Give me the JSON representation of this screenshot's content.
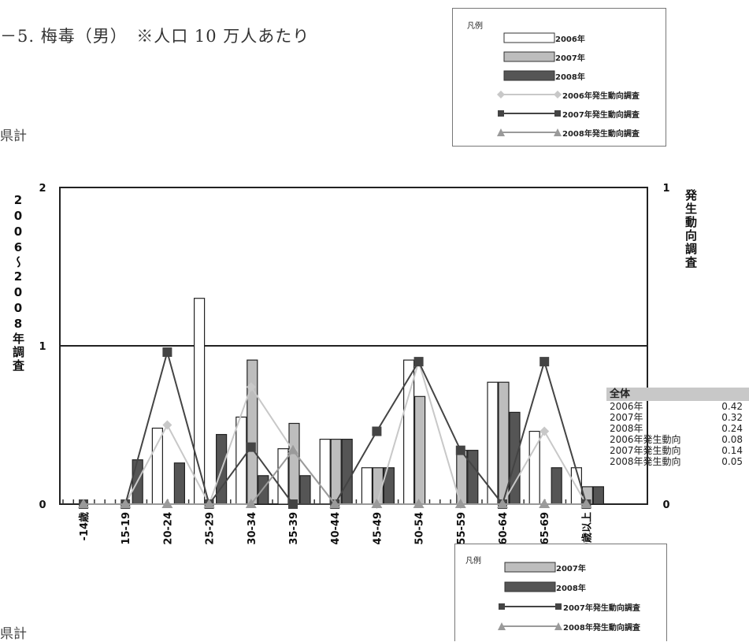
{
  "page": {
    "title": "－5. 梅毒（男）　※人口 10 万人あたり",
    "fragment_top": "県計",
    "fragment_bottom": "県計"
  },
  "legend_top": {
    "title": "凡例",
    "items": [
      {
        "label": "2006年",
        "kind": "bar",
        "color": "#ffffff"
      },
      {
        "label": "2007年",
        "kind": "bar",
        "color": "#bdbdbd"
      },
      {
        "label": "2008年",
        "kind": "bar",
        "color": "#555555"
      },
      {
        "label": "2006年発生動向調査",
        "kind": "line-diamond",
        "color": "#c8c8c8"
      },
      {
        "label": "2007年発生動向調査",
        "kind": "line-square",
        "color": "#444444"
      },
      {
        "label": "2008年発生動向調査",
        "kind": "line-triangle",
        "color": "#9a9a9a"
      }
    ]
  },
  "legend_bottom": {
    "title": "凡例",
    "items": [
      {
        "label": "2007年",
        "kind": "bar",
        "color": "#bdbdbd"
      },
      {
        "label": "2008年",
        "kind": "bar",
        "color": "#555555"
      },
      {
        "label": "2007年発生動向調査",
        "kind": "line-square",
        "color": "#444444"
      },
      {
        "label": "2008年発生動向調査",
        "kind": "line-triangle",
        "color": "#9a9a9a"
      }
    ]
  },
  "axis_left_label": "2006～2008年調査",
  "axis_right_label": "発生動向調査",
  "summary": {
    "header": "全体",
    "rows": [
      {
        "label": "2006年",
        "value": "0.42"
      },
      {
        "label": "2007年",
        "value": "0.32"
      },
      {
        "label": "2008年",
        "value": "0.24"
      },
      {
        "label": "2006年発生動向",
        "value": "0.08"
      },
      {
        "label": "2007年発生動向",
        "value": "0.14"
      },
      {
        "label": "2008年発生動向",
        "value": "0.05"
      }
    ]
  },
  "chart_data": {
    "type": "bar",
    "title": "",
    "categories": [
      "-14歳",
      "15-19",
      "20-24",
      "25-29",
      "30-34",
      "35-39",
      "40-44",
      "45-49",
      "50-54",
      "55-59",
      "60-64",
      "65-69",
      "70歳以上"
    ],
    "left_axis": {
      "ylim": [
        0,
        2
      ],
      "ticks": [
        "0",
        "1",
        "2"
      ]
    },
    "right_axis": {
      "ylim": [
        0,
        1
      ],
      "ticks": [
        "0",
        "1"
      ]
    },
    "reference_line": 1,
    "grid": false,
    "bar_series": [
      {
        "name": "2006年",
        "color": "#ffffff",
        "values": [
          0,
          0,
          0.48,
          1.3,
          0.55,
          0.35,
          0.41,
          0.23,
          0.91,
          0,
          0.77,
          0.46,
          0.23
        ]
      },
      {
        "name": "2007年",
        "color": "#bdbdbd",
        "values": [
          0,
          0,
          0,
          0,
          0.91,
          0.51,
          0.41,
          0.23,
          0.68,
          0.34,
          0.77,
          0,
          0.11
        ]
      },
      {
        "name": "2008年",
        "color": "#555555",
        "values": [
          0,
          0.28,
          0.26,
          0.44,
          0.18,
          0.18,
          0.41,
          0.23,
          0,
          0.34,
          0.58,
          0.23,
          0.11
        ]
      }
    ],
    "line_series": [
      {
        "name": "2006年発生動向調査",
        "axis": "right",
        "marker": "diamond",
        "color": "#c8c8c8",
        "values": [
          0,
          0,
          0.25,
          0,
          0.37,
          0.17,
          0,
          0,
          0.45,
          0,
          0,
          0.23,
          0
        ]
      },
      {
        "name": "2007年発生動向調査",
        "axis": "right",
        "marker": "square",
        "color": "#444444",
        "values": [
          0,
          0,
          0.48,
          0,
          0.18,
          0,
          0,
          0.23,
          0.45,
          0.17,
          0,
          0.45,
          0
        ]
      },
      {
        "name": "2008年発生動向調査",
        "axis": "right",
        "marker": "triangle",
        "color": "#9a9a9a",
        "values": [
          0,
          0,
          0,
          0,
          0,
          0.17,
          0,
          0,
          0,
          0,
          0,
          0,
          0
        ]
      }
    ]
  }
}
